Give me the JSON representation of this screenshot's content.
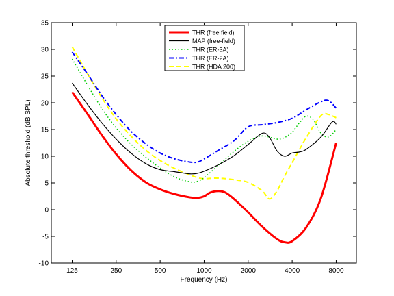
{
  "chart_data": {
    "type": "line",
    "xlabel": "Frequency (Hz)",
    "ylabel": "Absolute threshold (dB SPL)",
    "x_scale": "log",
    "xlim": [
      90,
      11000
    ],
    "ylim": [
      -10,
      35
    ],
    "x_ticks": [
      125,
      250,
      500,
      1000,
      2000,
      4000,
      8000
    ],
    "x_tick_labels": [
      "125",
      "250",
      "500",
      "1000",
      "2000",
      "4000",
      "8000"
    ],
    "y_ticks": [
      -10,
      -5,
      0,
      5,
      10,
      15,
      20,
      25,
      30,
      35
    ],
    "grid": false,
    "legend_position": "top-center",
    "series": [
      {
        "name": "THR (free field)",
        "color": "#ff0000",
        "style": "solid",
        "width": 3,
        "x": [
          125,
          160,
          200,
          250,
          315,
          400,
          500,
          630,
          800,
          900,
          1000,
          1100,
          1250,
          1400,
          1600,
          2000,
          2500,
          3150,
          3550,
          4000,
          5000,
          6300,
          8000
        ],
        "y": [
          22,
          17.8,
          13.9,
          10.4,
          7.4,
          5.1,
          3.8,
          2.9,
          2.3,
          2.2,
          2.5,
          3.2,
          3.5,
          3.2,
          2.0,
          -0.5,
          -3.2,
          -5.5,
          -6.1,
          -5.9,
          -3.3,
          2.2,
          12.5
        ]
      },
      {
        "name": "MAP (free-field)",
        "color": "#000000",
        "style": "solid",
        "width": 1.2,
        "x": [
          125,
          160,
          200,
          250,
          315,
          400,
          500,
          630,
          800,
          900,
          1000,
          1250,
          1600,
          2000,
          2500,
          2800,
          3150,
          3550,
          4000,
          4500,
          5000,
          6300,
          7500,
          8000
        ],
        "y": [
          23.7,
          19.6,
          16.2,
          13.2,
          10.6,
          8.6,
          7.5,
          7.1,
          6.7,
          6.8,
          7.2,
          8.4,
          10.1,
          12.2,
          14.3,
          13.5,
          11,
          10,
          10.6,
          10.8,
          11.3,
          13.6,
          16.4,
          16
        ]
      },
      {
        "name": "THR (ER-3A)",
        "color": "#00cc00",
        "style": "dotted",
        "width": 1.5,
        "x": [
          125,
          160,
          200,
          250,
          315,
          400,
          500,
          630,
          800,
          900,
          1000,
          1250,
          1600,
          2000,
          2500,
          3150,
          3550,
          4000,
          4500,
          5000,
          5600,
          6300,
          7100,
          8000
        ],
        "y": [
          28.2,
          23.2,
          18.9,
          15.3,
          12.3,
          9.8,
          7.8,
          6.1,
          5.2,
          5.3,
          6,
          8.3,
          10.9,
          12.8,
          13.8,
          13.2,
          13.5,
          14.5,
          16.3,
          17.5,
          16.8,
          14.3,
          13.6,
          15
        ]
      },
      {
        "name": "THR (ER-2A)",
        "color": "#0000ff",
        "style": "dashdot",
        "width": 2,
        "x": [
          125,
          160,
          200,
          250,
          315,
          400,
          500,
          630,
          800,
          900,
          1000,
          1250,
          1600,
          2000,
          2500,
          3150,
          4000,
          5000,
          6300,
          7100,
          8000
        ],
        "y": [
          29.5,
          25.3,
          21.3,
          17.8,
          14.7,
          12.3,
          10.6,
          9.5,
          8.9,
          8.9,
          9.5,
          11.1,
          12.9,
          15.5,
          15.9,
          16.3,
          17.1,
          18.7,
          20.2,
          20.4,
          19
        ]
      },
      {
        "name": "THR (HDA 200)",
        "color": "#ffff00",
        "style": "dashed",
        "width": 2,
        "x": [
          125,
          160,
          200,
          250,
          315,
          400,
          500,
          630,
          800,
          900,
          1000,
          1250,
          1600,
          2000,
          2500,
          2800,
          3150,
          3550,
          4000,
          5000,
          6300,
          7100,
          8000
        ],
        "y": [
          30.5,
          25.3,
          20.9,
          17,
          13.8,
          11.1,
          9.2,
          7.7,
          6.5,
          6,
          5.8,
          5.9,
          5.6,
          5.1,
          3.5,
          2,
          3.5,
          6.3,
          8.8,
          13.5,
          17.6,
          17.8,
          17.2
        ]
      }
    ]
  }
}
